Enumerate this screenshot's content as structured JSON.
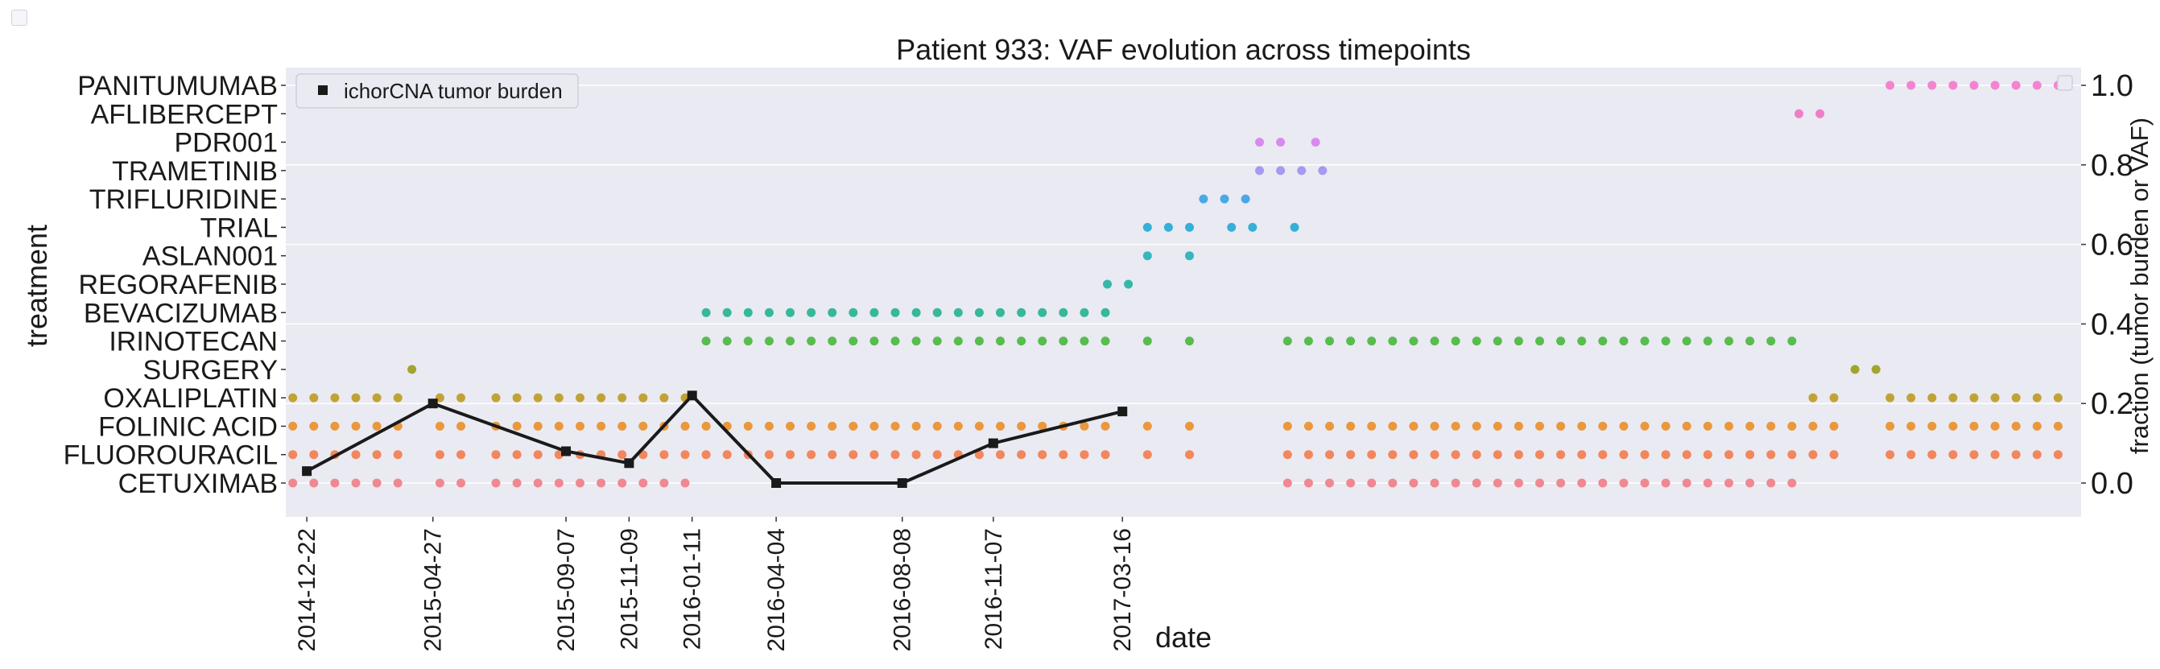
{
  "chart_data": {
    "type": "scatter",
    "title": "Patient 933: VAF evolution across timepoints",
    "xlabel": "date",
    "ylabel_left": "treatment",
    "ylabel_right": "fraction (tumor burden or VAF)",
    "right_ylim": [
      0,
      1
    ],
    "right_yticks": [
      "0.0",
      "0.2",
      "0.4",
      "0.6",
      "0.8",
      "1.0"
    ],
    "x_domain": [
      "2014-12-01",
      "2019-10-30"
    ],
    "xtick_labels": [
      "2014-12-22",
      "2015-04-27",
      "2015-09-07",
      "2015-11-09",
      "2016-01-11",
      "2016-04-04",
      "2016-08-08",
      "2016-11-07",
      "2017-03-16"
    ],
    "grid": true,
    "legend": {
      "placement": "upper-left",
      "entries": [
        "ichorCNA tumor burden"
      ]
    },
    "colors": {
      "plot_background": "#eaeaf2",
      "grid": "#ffffff",
      "tumor_burden_line": "#1a1a1a"
    },
    "categories": [
      "CETUXIMAB",
      "FLUOROURACIL",
      "FOLINIC ACID",
      "OXALIPLATIN",
      "SURGERY",
      "IRINOTECAN",
      "BEVACIZUMAB",
      "REGORAFENIB",
      "ASLAN001",
      "TRIAL",
      "TRIFLURIDINE",
      "TRAMETINIB",
      "PDR001",
      "AFLIBERCEPT",
      "PANITUMUMAB"
    ],
    "treatment_series": [
      {
        "name": "CETUXIMAB",
        "color": "#f08891",
        "dates": [
          "2014-12-08",
          "2014-12-29",
          "2015-01-19",
          "2015-02-09",
          "2015-03-02",
          "2015-03-23",
          "2015-05-04",
          "2015-05-25",
          "2015-06-29",
          "2015-07-20",
          "2015-08-10",
          "2015-08-31",
          "2015-09-21",
          "2015-10-12",
          "2015-11-02",
          "2015-11-23",
          "2015-12-14",
          "2016-01-04",
          "2017-08-28",
          "2017-09-18",
          "2017-10-09",
          "2017-10-30",
          "2017-11-20",
          "2017-12-11",
          "2018-01-01",
          "2018-01-22",
          "2018-02-12",
          "2018-03-05",
          "2018-03-26",
          "2018-04-16",
          "2018-05-07",
          "2018-05-28",
          "2018-06-18",
          "2018-07-09",
          "2018-07-30",
          "2018-08-20",
          "2018-09-10",
          "2018-10-01",
          "2018-10-22",
          "2018-11-12",
          "2018-12-03",
          "2018-12-24",
          "2019-01-14"
        ]
      },
      {
        "name": "FLUOROURACIL",
        "color": "#f2865c",
        "dates": [
          "2014-12-08",
          "2014-12-29",
          "2015-01-19",
          "2015-02-09",
          "2015-03-02",
          "2015-03-23",
          "2015-05-04",
          "2015-05-25",
          "2015-06-29",
          "2015-07-20",
          "2015-08-10",
          "2015-08-31",
          "2015-09-21",
          "2015-10-12",
          "2015-11-02",
          "2015-11-23",
          "2015-12-14",
          "2016-01-04",
          "2016-01-25",
          "2016-02-15",
          "2016-03-07",
          "2016-03-28",
          "2016-04-18",
          "2016-05-09",
          "2016-05-30",
          "2016-06-20",
          "2016-07-11",
          "2016-08-01",
          "2016-08-22",
          "2016-09-12",
          "2016-10-03",
          "2016-10-24",
          "2016-11-14",
          "2016-12-05",
          "2016-12-26",
          "2017-01-16",
          "2017-02-06",
          "2017-02-27",
          "2017-04-10",
          "2017-05-22",
          "2017-08-28",
          "2017-09-18",
          "2017-10-09",
          "2017-10-30",
          "2017-11-20",
          "2017-12-11",
          "2018-01-01",
          "2018-01-22",
          "2018-02-12",
          "2018-03-05",
          "2018-03-26",
          "2018-04-16",
          "2018-05-07",
          "2018-05-28",
          "2018-06-18",
          "2018-07-09",
          "2018-07-30",
          "2018-08-20",
          "2018-09-10",
          "2018-10-01",
          "2018-10-22",
          "2018-11-12",
          "2018-12-03",
          "2018-12-24",
          "2019-01-14",
          "2019-02-04",
          "2019-02-25",
          "2019-04-22",
          "2019-05-13",
          "2019-06-03",
          "2019-06-24",
          "2019-07-15",
          "2019-08-05",
          "2019-08-26",
          "2019-09-16",
          "2019-10-07"
        ]
      },
      {
        "name": "FOLINIC ACID",
        "color": "#e9983c",
        "dates": [
          "2014-12-08",
          "2014-12-29",
          "2015-01-19",
          "2015-02-09",
          "2015-03-02",
          "2015-03-23",
          "2015-05-04",
          "2015-05-25",
          "2015-06-29",
          "2015-07-20",
          "2015-08-10",
          "2015-08-31",
          "2015-09-21",
          "2015-10-12",
          "2015-11-02",
          "2015-11-23",
          "2015-12-14",
          "2016-01-04",
          "2016-01-25",
          "2016-02-15",
          "2016-03-07",
          "2016-03-28",
          "2016-04-18",
          "2016-05-09",
          "2016-05-30",
          "2016-06-20",
          "2016-07-11",
          "2016-08-01",
          "2016-08-22",
          "2016-09-12",
          "2016-10-03",
          "2016-10-24",
          "2016-11-14",
          "2016-12-05",
          "2016-12-26",
          "2017-01-16",
          "2017-02-06",
          "2017-02-27",
          "2017-04-10",
          "2017-05-22",
          "2017-08-28",
          "2017-09-18",
          "2017-10-09",
          "2017-10-30",
          "2017-11-20",
          "2017-12-11",
          "2018-01-01",
          "2018-01-22",
          "2018-02-12",
          "2018-03-05",
          "2018-03-26",
          "2018-04-16",
          "2018-05-07",
          "2018-05-28",
          "2018-06-18",
          "2018-07-09",
          "2018-07-30",
          "2018-08-20",
          "2018-09-10",
          "2018-10-01",
          "2018-10-22",
          "2018-11-12",
          "2018-12-03",
          "2018-12-24",
          "2019-01-14",
          "2019-02-04",
          "2019-02-25",
          "2019-04-22",
          "2019-05-13",
          "2019-06-03",
          "2019-06-24",
          "2019-07-15",
          "2019-08-05",
          "2019-08-26",
          "2019-09-16",
          "2019-10-07"
        ]
      },
      {
        "name": "OXALIPLATIN",
        "color": "#c1a234",
        "dates": [
          "2014-12-08",
          "2014-12-29",
          "2015-01-19",
          "2015-02-09",
          "2015-03-02",
          "2015-03-23",
          "2015-05-04",
          "2015-05-25",
          "2015-06-29",
          "2015-07-20",
          "2015-08-10",
          "2015-08-31",
          "2015-09-21",
          "2015-10-12",
          "2015-11-02",
          "2015-11-23",
          "2015-12-14",
          "2016-01-04",
          "2019-02-04",
          "2019-02-25",
          "2019-04-22",
          "2019-05-13",
          "2019-06-03",
          "2019-06-24",
          "2019-07-15",
          "2019-08-05",
          "2019-08-26",
          "2019-09-16",
          "2019-10-07"
        ]
      },
      {
        "name": "SURGERY",
        "color": "#a1a52e",
        "dates": [
          "2015-04-06",
          "2019-03-18",
          "2019-04-08"
        ]
      },
      {
        "name": "IRINOTECAN",
        "color": "#58bc4e",
        "dates": [
          "2016-01-25",
          "2016-02-15",
          "2016-03-07",
          "2016-03-28",
          "2016-04-18",
          "2016-05-09",
          "2016-05-30",
          "2016-06-20",
          "2016-07-11",
          "2016-08-01",
          "2016-08-22",
          "2016-09-12",
          "2016-10-03",
          "2016-10-24",
          "2016-11-14",
          "2016-12-05",
          "2016-12-26",
          "2017-01-16",
          "2017-02-06",
          "2017-02-27",
          "2017-04-10",
          "2017-05-22",
          "2017-08-28",
          "2017-09-18",
          "2017-10-09",
          "2017-10-30",
          "2017-11-20",
          "2017-12-11",
          "2018-01-01",
          "2018-01-22",
          "2018-02-12",
          "2018-03-05",
          "2018-03-26",
          "2018-04-16",
          "2018-05-07",
          "2018-05-28",
          "2018-06-18",
          "2018-07-09",
          "2018-07-30",
          "2018-08-20",
          "2018-09-10",
          "2018-10-01",
          "2018-10-22",
          "2018-11-12",
          "2018-12-03",
          "2018-12-24",
          "2019-01-14"
        ]
      },
      {
        "name": "BEVACIZUMAB",
        "color": "#36b89a",
        "dates": [
          "2016-01-25",
          "2016-02-15",
          "2016-03-07",
          "2016-03-28",
          "2016-04-18",
          "2016-05-09",
          "2016-05-30",
          "2016-06-20",
          "2016-07-11",
          "2016-08-01",
          "2016-08-22",
          "2016-09-12",
          "2016-10-03",
          "2016-10-24",
          "2016-11-14",
          "2016-12-05",
          "2016-12-26",
          "2017-01-16",
          "2017-02-06",
          "2017-02-27"
        ]
      },
      {
        "name": "REGORAFENIB",
        "color": "#35b8a8",
        "dates": [
          "2017-03-01",
          "2017-03-22"
        ]
      },
      {
        "name": "ASLAN001",
        "color": "#36b5c2",
        "dates": [
          "2017-04-10",
          "2017-05-22"
        ]
      },
      {
        "name": "TRIAL",
        "color": "#35b0d8",
        "dates": [
          "2017-04-10",
          "2017-05-01",
          "2017-05-22",
          "2017-07-03",
          "2017-07-24",
          "2017-09-04"
        ]
      },
      {
        "name": "TRIFLURIDINE",
        "color": "#4aa8e6",
        "dates": [
          "2017-06-05",
          "2017-06-26",
          "2017-07-17"
        ]
      },
      {
        "name": "TRAMETINIB",
        "color": "#a39bf0",
        "dates": [
          "2017-07-31",
          "2017-08-21",
          "2017-09-11",
          "2017-10-02"
        ]
      },
      {
        "name": "PDR001",
        "color": "#d88af0",
        "dates": [
          "2017-07-31",
          "2017-08-21",
          "2017-09-25"
        ]
      },
      {
        "name": "AFLIBERCEPT",
        "color": "#f07ec6",
        "dates": [
          "2019-01-21",
          "2019-02-11"
        ]
      },
      {
        "name": "PANITUMUMAB",
        "color": "#f384d0",
        "dates": [
          "2019-04-22",
          "2019-05-13",
          "2019-06-03",
          "2019-06-24",
          "2019-07-15",
          "2019-08-05",
          "2019-08-26",
          "2019-09-16",
          "2019-10-07"
        ]
      }
    ],
    "tumor_burden": {
      "name": "ichorCNA tumor burden",
      "dates": [
        "2014-12-22",
        "2015-04-27",
        "2015-09-07",
        "2015-11-09",
        "2016-01-11",
        "2016-04-04",
        "2016-08-08",
        "2016-11-07",
        "2017-03-16"
      ],
      "values": [
        0.03,
        0.2,
        0.08,
        0.05,
        0.22,
        0.0,
        0.0,
        0.1,
        0.18
      ]
    }
  }
}
